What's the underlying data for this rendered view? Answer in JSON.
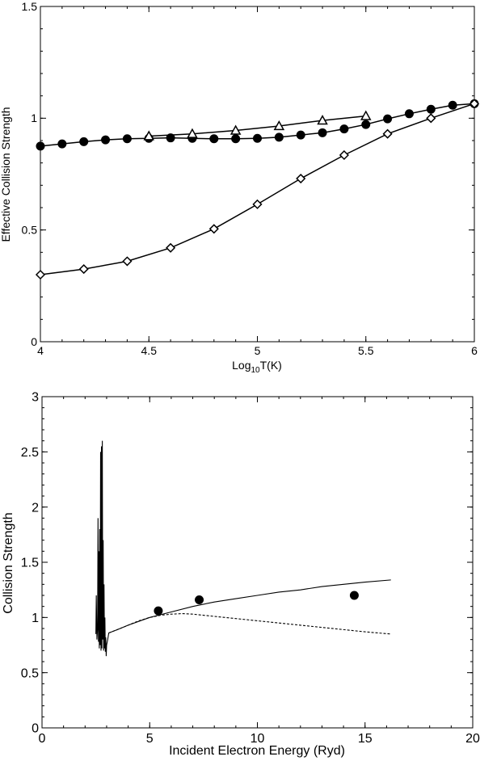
{
  "chart_data": [
    {
      "type": "line",
      "title": "",
      "xlabel_main": "Log",
      "xlabel_sub": "10",
      "xlabel_tail": "T(K)",
      "ylabel": "Effective Collision Strength",
      "xlim": [
        4,
        6
      ],
      "ylim": [
        0,
        1.5
      ],
      "xticks": [
        "4",
        "4.5",
        "5",
        "5.5",
        "6"
      ],
      "yticks": [
        "0",
        "0.5",
        "1",
        "1.5"
      ],
      "xtick_values": [
        4,
        4.5,
        5,
        5.5,
        6
      ],
      "ytick_values": [
        0,
        0.5,
        1,
        1.5
      ],
      "grid": false,
      "series": [
        {
          "marker": "filled-circle",
          "x": [
            4.0,
            4.1,
            4.2,
            4.3,
            4.4,
            4.5,
            4.6,
            4.7,
            4.8,
            4.9,
            5.0,
            5.1,
            5.2,
            5.3,
            5.4,
            5.5,
            5.6,
            5.7,
            5.8,
            5.9,
            6.0
          ],
          "values": [
            0.875,
            0.885,
            0.895,
            0.903,
            0.908,
            0.91,
            0.912,
            0.91,
            0.908,
            0.908,
            0.91,
            0.915,
            0.925,
            0.935,
            0.952,
            0.972,
            0.997,
            1.02,
            1.04,
            1.058,
            1.065
          ]
        },
        {
          "marker": "open-triangle",
          "x": [
            4.5,
            4.7,
            4.9,
            5.1,
            5.3,
            5.5
          ],
          "values": [
            0.92,
            0.93,
            0.945,
            0.965,
            0.99,
            1.01
          ]
        },
        {
          "marker": "open-diamond",
          "x": [
            4.0,
            4.2,
            4.4,
            4.6,
            4.8,
            5.0,
            5.2,
            5.4,
            5.6,
            5.8,
            6.0
          ],
          "values": [
            0.3,
            0.325,
            0.36,
            0.42,
            0.505,
            0.615,
            0.73,
            0.835,
            0.93,
            1.0,
            1.065
          ]
        }
      ]
    },
    {
      "type": "line",
      "title": "",
      "xlabel": "Incident Electron Energy (Ryd)",
      "ylabel": "Collision Strength",
      "xlim": [
        0,
        20
      ],
      "ylim": [
        0,
        3
      ],
      "xticks": [
        "0",
        "5",
        "10",
        "15",
        "20"
      ],
      "yticks": [
        "0",
        "0.5",
        "1",
        "1.5",
        "2",
        "2.5",
        "3"
      ],
      "xtick_values": [
        0,
        5,
        10,
        15,
        20
      ],
      "ytick_values": [
        0,
        0.5,
        1,
        1.5,
        2,
        2.5,
        3
      ],
      "grid": false,
      "series": [
        {
          "style": "solid",
          "x": [
            2.5,
            2.52,
            2.55,
            2.58,
            2.6,
            2.62,
            2.64,
            2.66,
            2.68,
            2.7,
            2.72,
            2.74,
            2.76,
            2.78,
            2.8,
            2.82,
            2.84,
            2.86,
            2.88,
            2.9,
            2.92,
            2.94,
            2.96,
            2.98,
            3.0,
            3.05,
            3.1,
            3.5,
            4.0,
            5.0,
            6.0,
            7.0,
            8.0,
            9.0,
            10.0,
            11.0,
            12.0,
            13.0,
            14.0,
            15.0,
            16.2
          ],
          "values": [
            0.85,
            1.2,
            0.8,
            0.9,
            1.9,
            0.78,
            1.6,
            0.72,
            1.8,
            0.75,
            2.5,
            0.7,
            2.55,
            0.72,
            2.6,
            0.8,
            1.7,
            0.7,
            1.3,
            0.72,
            1.0,
            0.69,
            0.82,
            0.65,
            0.75,
            0.8,
            0.86,
            0.89,
            0.93,
            1.0,
            1.05,
            1.1,
            1.14,
            1.17,
            1.2,
            1.23,
            1.25,
            1.28,
            1.3,
            1.32,
            1.34
          ]
        },
        {
          "style": "dashed",
          "x": [
            3.1,
            3.5,
            4.0,
            4.5,
            5.0,
            5.5,
            6.0,
            6.5,
            7.0,
            8.0,
            9.0,
            10.0,
            11.0,
            12.0,
            13.0,
            14.0,
            15.0,
            16.2
          ],
          "values": [
            0.86,
            0.89,
            0.93,
            0.97,
            1.0,
            1.02,
            1.03,
            1.035,
            1.03,
            1.01,
            0.99,
            0.97,
            0.95,
            0.93,
            0.91,
            0.89,
            0.87,
            0.85
          ]
        },
        {
          "style": "points",
          "marker": "filled-circle",
          "x": [
            5.4,
            7.3,
            14.5
          ],
          "values": [
            1.06,
            1.16,
            1.2
          ]
        }
      ]
    }
  ]
}
